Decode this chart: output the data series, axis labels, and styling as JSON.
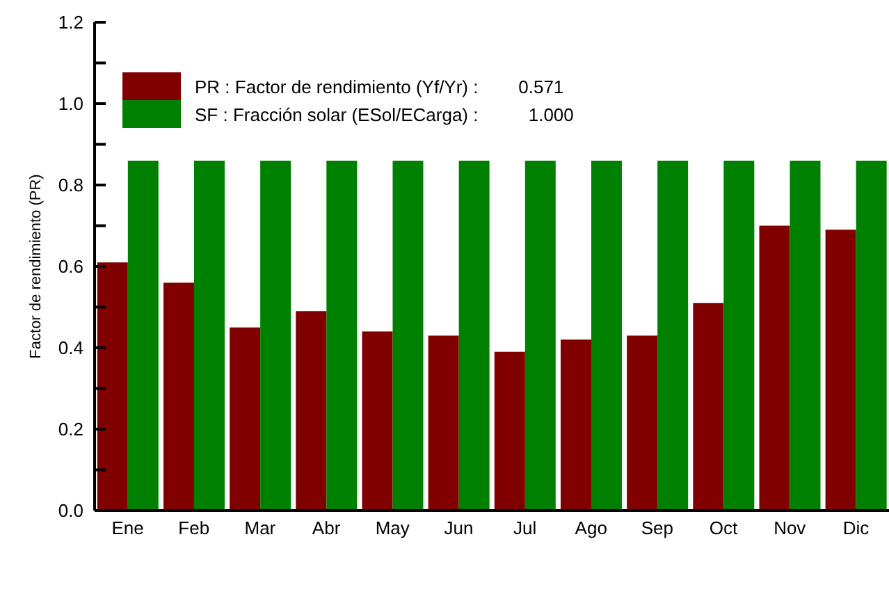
{
  "chart_data": {
    "type": "bar",
    "ylabel": "Factor  de  rendimiento  (PR)",
    "categories": [
      "Ene",
      "Feb",
      "Mar",
      "Abr",
      "May",
      "Jun",
      "Jul",
      "Ago",
      "Sep",
      "Oct",
      "Nov",
      "Dic"
    ],
    "series": [
      {
        "name": "PR : Factor de rendimiento (Yf/Yr) :        0.571",
        "color": "#800000",
        "values": [
          0.61,
          0.56,
          0.45,
          0.49,
          0.44,
          0.43,
          0.39,
          0.42,
          0.43,
          0.51,
          0.7,
          0.69
        ]
      },
      {
        "name": "SF : Fracción solar (ESol/ECarga) :          1.000",
        "color": "#008000",
        "values": [
          0.86,
          0.86,
          0.86,
          0.86,
          0.86,
          0.86,
          0.86,
          0.86,
          0.86,
          0.86,
          0.86,
          0.86
        ]
      }
    ],
    "ylim": [
      0,
      1.2
    ],
    "yticks": [
      {
        "value": 0,
        "label": "0.0"
      },
      {
        "value": 0.1,
        "label": null
      },
      {
        "value": 0.2,
        "label": "0.2"
      },
      {
        "value": 0.3,
        "label": null
      },
      {
        "value": 0.4,
        "label": "0.4"
      },
      {
        "value": 0.5,
        "label": null
      },
      {
        "value": 0.6,
        "label": "0.6"
      },
      {
        "value": 0.7,
        "label": null
      },
      {
        "value": 0.8,
        "label": "0.8"
      },
      {
        "value": 0.9,
        "label": null
      },
      {
        "value": 1.0,
        "label": "1.0"
      },
      {
        "value": 1.1,
        "label": null
      },
      {
        "value": 1.2,
        "label": "1.2"
      }
    ],
    "grid": false,
    "legend": "top left"
  }
}
